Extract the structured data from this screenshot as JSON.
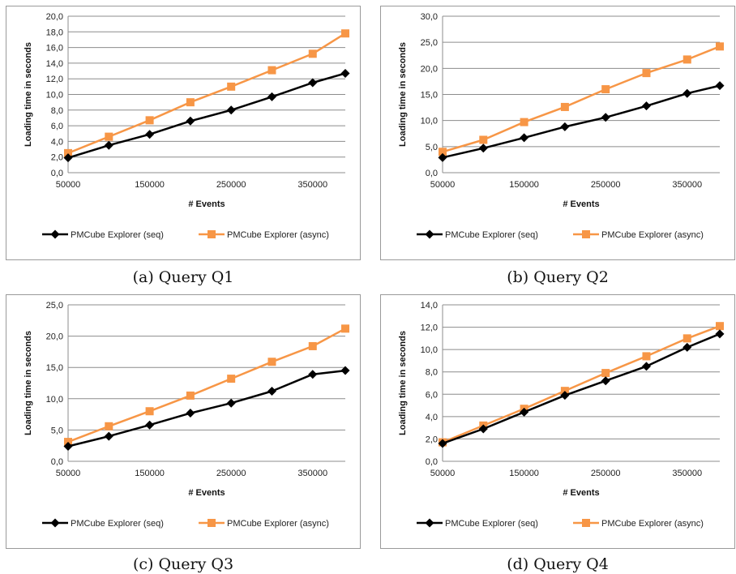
{
  "colors": {
    "seq": "#000000",
    "async": "#f79646",
    "grid": "#8c8c8c",
    "axis": "#8c8c8c"
  },
  "chart_data": [
    {
      "type": "line",
      "caption": "(a) Query Q1",
      "xlabel": "# Events",
      "ylabel": "Loading time in seconds",
      "x": [
        50000,
        100000,
        150000,
        200000,
        250000,
        300000,
        350000,
        390000
      ],
      "xlim": [
        50000,
        390000
      ],
      "xticks": [
        50000,
        150000,
        250000,
        350000
      ],
      "xtick_labels": [
        "50000",
        "150000",
        "250000",
        "350000"
      ],
      "ylim": [
        0,
        20
      ],
      "yticks": [
        0,
        2,
        4,
        6,
        8,
        10,
        12,
        14,
        16,
        18,
        20
      ],
      "ytick_labels": [
        "0,0",
        "2,0",
        "4,0",
        "6,0",
        "8,0",
        "10,0",
        "12,0",
        "14,0",
        "16,0",
        "18,0",
        "20,0"
      ],
      "grid": true,
      "legend_position": "bottom",
      "series": [
        {
          "name": "PMCube Explorer (seq)",
          "marker": "diamond",
          "values": [
            1.9,
            3.5,
            4.9,
            6.6,
            8.0,
            9.7,
            11.5,
            12.7
          ]
        },
        {
          "name": "PMCube Explorer (async)",
          "marker": "square",
          "values": [
            2.5,
            4.6,
            6.7,
            9.0,
            11.0,
            13.1,
            15.2,
            17.8
          ]
        }
      ]
    },
    {
      "type": "line",
      "caption": "(b) Query Q2",
      "xlabel": "# Events",
      "ylabel": "Loading time in seconds",
      "x": [
        50000,
        100000,
        150000,
        200000,
        250000,
        300000,
        350000,
        390000
      ],
      "xlim": [
        50000,
        390000
      ],
      "xticks": [
        50000,
        150000,
        250000,
        350000
      ],
      "xtick_labels": [
        "50000",
        "150000",
        "250000",
        "350000"
      ],
      "ylim": [
        0,
        30
      ],
      "yticks": [
        0,
        5,
        10,
        15,
        20,
        25,
        30
      ],
      "ytick_labels": [
        "0,0",
        "5,0",
        "10,0",
        "15,0",
        "20,0",
        "25,0",
        "30,0"
      ],
      "grid": true,
      "legend_position": "bottom",
      "series": [
        {
          "name": "PMCube Explorer (seq)",
          "marker": "diamond",
          "values": [
            2.9,
            4.7,
            6.7,
            8.8,
            10.6,
            12.8,
            15.2,
            16.7
          ]
        },
        {
          "name": "PMCube Explorer (async)",
          "marker": "square",
          "values": [
            4.0,
            6.3,
            9.7,
            12.6,
            16.0,
            19.1,
            21.7,
            24.2
          ]
        }
      ]
    },
    {
      "type": "line",
      "caption": "(c) Query Q3",
      "xlabel": "# Events",
      "ylabel": "Loading time in seconds",
      "x": [
        50000,
        100000,
        150000,
        200000,
        250000,
        300000,
        350000,
        390000
      ],
      "xlim": [
        50000,
        390000
      ],
      "xticks": [
        50000,
        150000,
        250000,
        350000
      ],
      "xtick_labels": [
        "50000",
        "150000",
        "250000",
        "350000"
      ],
      "ylim": [
        0,
        25
      ],
      "yticks": [
        0,
        5,
        10,
        15,
        20,
        25
      ],
      "ytick_labels": [
        "0,0",
        "5,0",
        "10,0",
        "15,0",
        "20,0",
        "25,0"
      ],
      "grid": true,
      "legend_position": "bottom",
      "series": [
        {
          "name": "PMCube Explorer (seq)",
          "marker": "diamond",
          "values": [
            2.4,
            4.0,
            5.8,
            7.7,
            9.3,
            11.2,
            13.9,
            14.5
          ]
        },
        {
          "name": "PMCube Explorer (async)",
          "marker": "square",
          "values": [
            3.1,
            5.6,
            8.0,
            10.5,
            13.2,
            15.9,
            18.4,
            21.2
          ]
        }
      ]
    },
    {
      "type": "line",
      "caption": "(d) Query Q4",
      "xlabel": "# Events",
      "ylabel": "Loading time in seconds",
      "x": [
        50000,
        100000,
        150000,
        200000,
        250000,
        300000,
        350000,
        390000
      ],
      "xlim": [
        50000,
        390000
      ],
      "xticks": [
        50000,
        150000,
        250000,
        350000
      ],
      "xtick_labels": [
        "50000",
        "150000",
        "250000",
        "350000"
      ],
      "ylim": [
        0,
        14
      ],
      "yticks": [
        0,
        2,
        4,
        6,
        8,
        10,
        12,
        14
      ],
      "ytick_labels": [
        "0,0",
        "2,0",
        "4,0",
        "6,0",
        "8,0",
        "10,0",
        "12,0",
        "14,0"
      ],
      "grid": true,
      "legend_position": "bottom",
      "series": [
        {
          "name": "PMCube Explorer (seq)",
          "marker": "diamond",
          "values": [
            1.6,
            2.9,
            4.4,
            5.9,
            7.2,
            8.5,
            10.2,
            11.4
          ]
        },
        {
          "name": "PMCube Explorer (async)",
          "marker": "square",
          "values": [
            1.7,
            3.2,
            4.7,
            6.3,
            7.9,
            9.4,
            11.0,
            12.1
          ]
        }
      ]
    }
  ]
}
